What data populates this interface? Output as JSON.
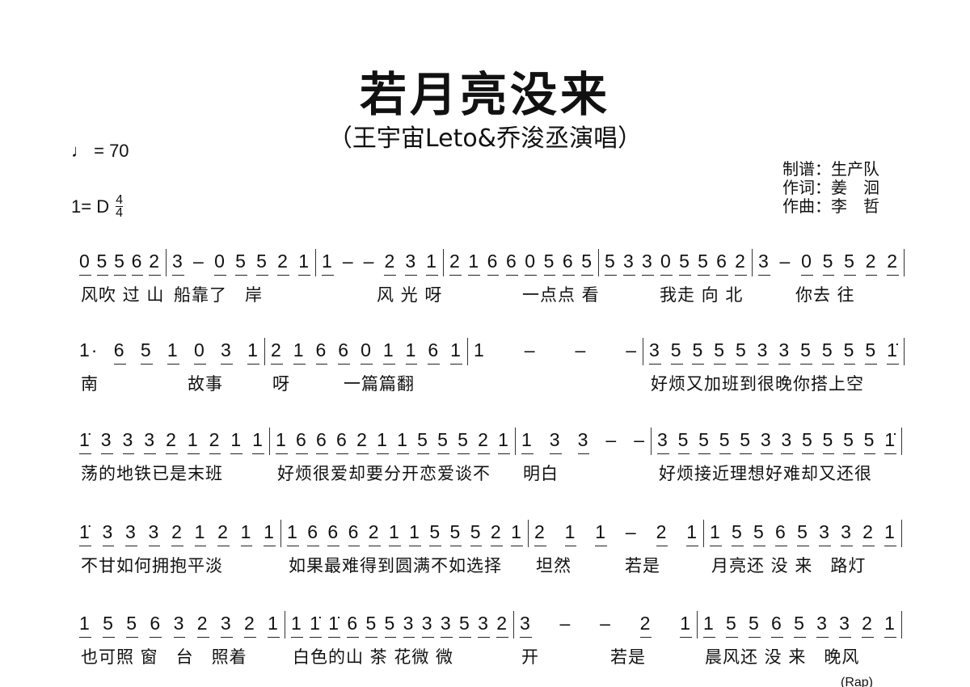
{
  "header": {
    "title": "若月亮没来",
    "subtitle": "（王宇宙Leto&乔浚丞演唱）",
    "tempo": "♩ = 70",
    "key": "1= D",
    "time_top": "4",
    "time_bottom": "4",
    "credits": [
      "制谱：生产队",
      "作词：姜　洄",
      "作曲：李　哲"
    ]
  },
  "rows": [
    {
      "measures": [
        {
          "notes": "0 5 5 6 2",
          "lyrics": "风吹 过 山"
        },
        {
          "notes": "3 – 0 5 5 2 1",
          "lyrics": "船靠了　岸"
        },
        {
          "notes": "1 – – 2 3 1",
          "lyrics": "　　　风 光 呀"
        },
        {
          "notes": "2 1 6 6 0 5 6 5",
          "lyrics": "　　　　一点点 看"
        },
        {
          "notes": "5 3 3 0 5 5 6 2",
          "lyrics": "　　　我走 向 北"
        },
        {
          "notes": "3 – 0 5 5 2 2",
          "lyrics": "　　你去 往"
        }
      ]
    },
    {
      "measures": [
        {
          "notes": "1· 6 5 1 0 3 1",
          "lyrics": "南　　　　　故事"
        },
        {
          "notes": "2 1 6 6 0 1 1 6 1",
          "lyrics": "呀　　　一篇篇翻"
        },
        {
          "notes": "1 – – –",
          "lyrics": ""
        },
        {
          "notes": "3 5 5 5 5 3 3 5 5 5 5 1̇",
          "lyrics": "好烦又加班到很晚你搭上空"
        }
      ]
    },
    {
      "measures": [
        {
          "notes": "1̇ 3 3 3 2 1 2 1 1",
          "lyrics": "荡的地铁已是末班"
        },
        {
          "notes": "1 6 6 6 2 1 1 5 5 5 2 1",
          "lyrics": "好烦很爱却要分开恋爱谈不"
        },
        {
          "notes": "1 3 3 – –",
          "lyrics": "明白"
        },
        {
          "notes": "3 5 5 5 5 3 3 5 5 5 5 1̇",
          "lyrics": "好烦接近理想好难却又还很"
        }
      ]
    },
    {
      "measures": [
        {
          "notes": "1̇ 3 3 3 2 1 2 1 1",
          "lyrics": "不甘如何拥抱平淡"
        },
        {
          "notes": "1 6 6 6 2 1 1 5 5 5 2 1",
          "lyrics": "如果最难得到圆满不如选择"
        },
        {
          "notes": "2 1 1 – 2 1",
          "lyrics": "坦然　　　若是"
        },
        {
          "notes": "1 5 5 6 5 3 3 2 1",
          "lyrics": "月亮还 没 来　路灯"
        }
      ]
    },
    {
      "measures": [
        {
          "notes": "1 5 5 6 3 2 3 2 1",
          "lyrics": "也可照 窗　台　照着"
        },
        {
          "notes": "1 1̇ 1̇ 6 5 5 3 3 3 5 3 2",
          "lyrics": "白色的山 茶 花微 微"
        },
        {
          "notes": "3 – – 2 1",
          "lyrics": "开　　　　若是"
        },
        {
          "notes": "1 5 5 6 5 3 3 2 1",
          "lyrics": "晨风还 没 来　晚风"
        }
      ]
    }
  ],
  "footer": {
    "rap_label": "(Rap)"
  }
}
